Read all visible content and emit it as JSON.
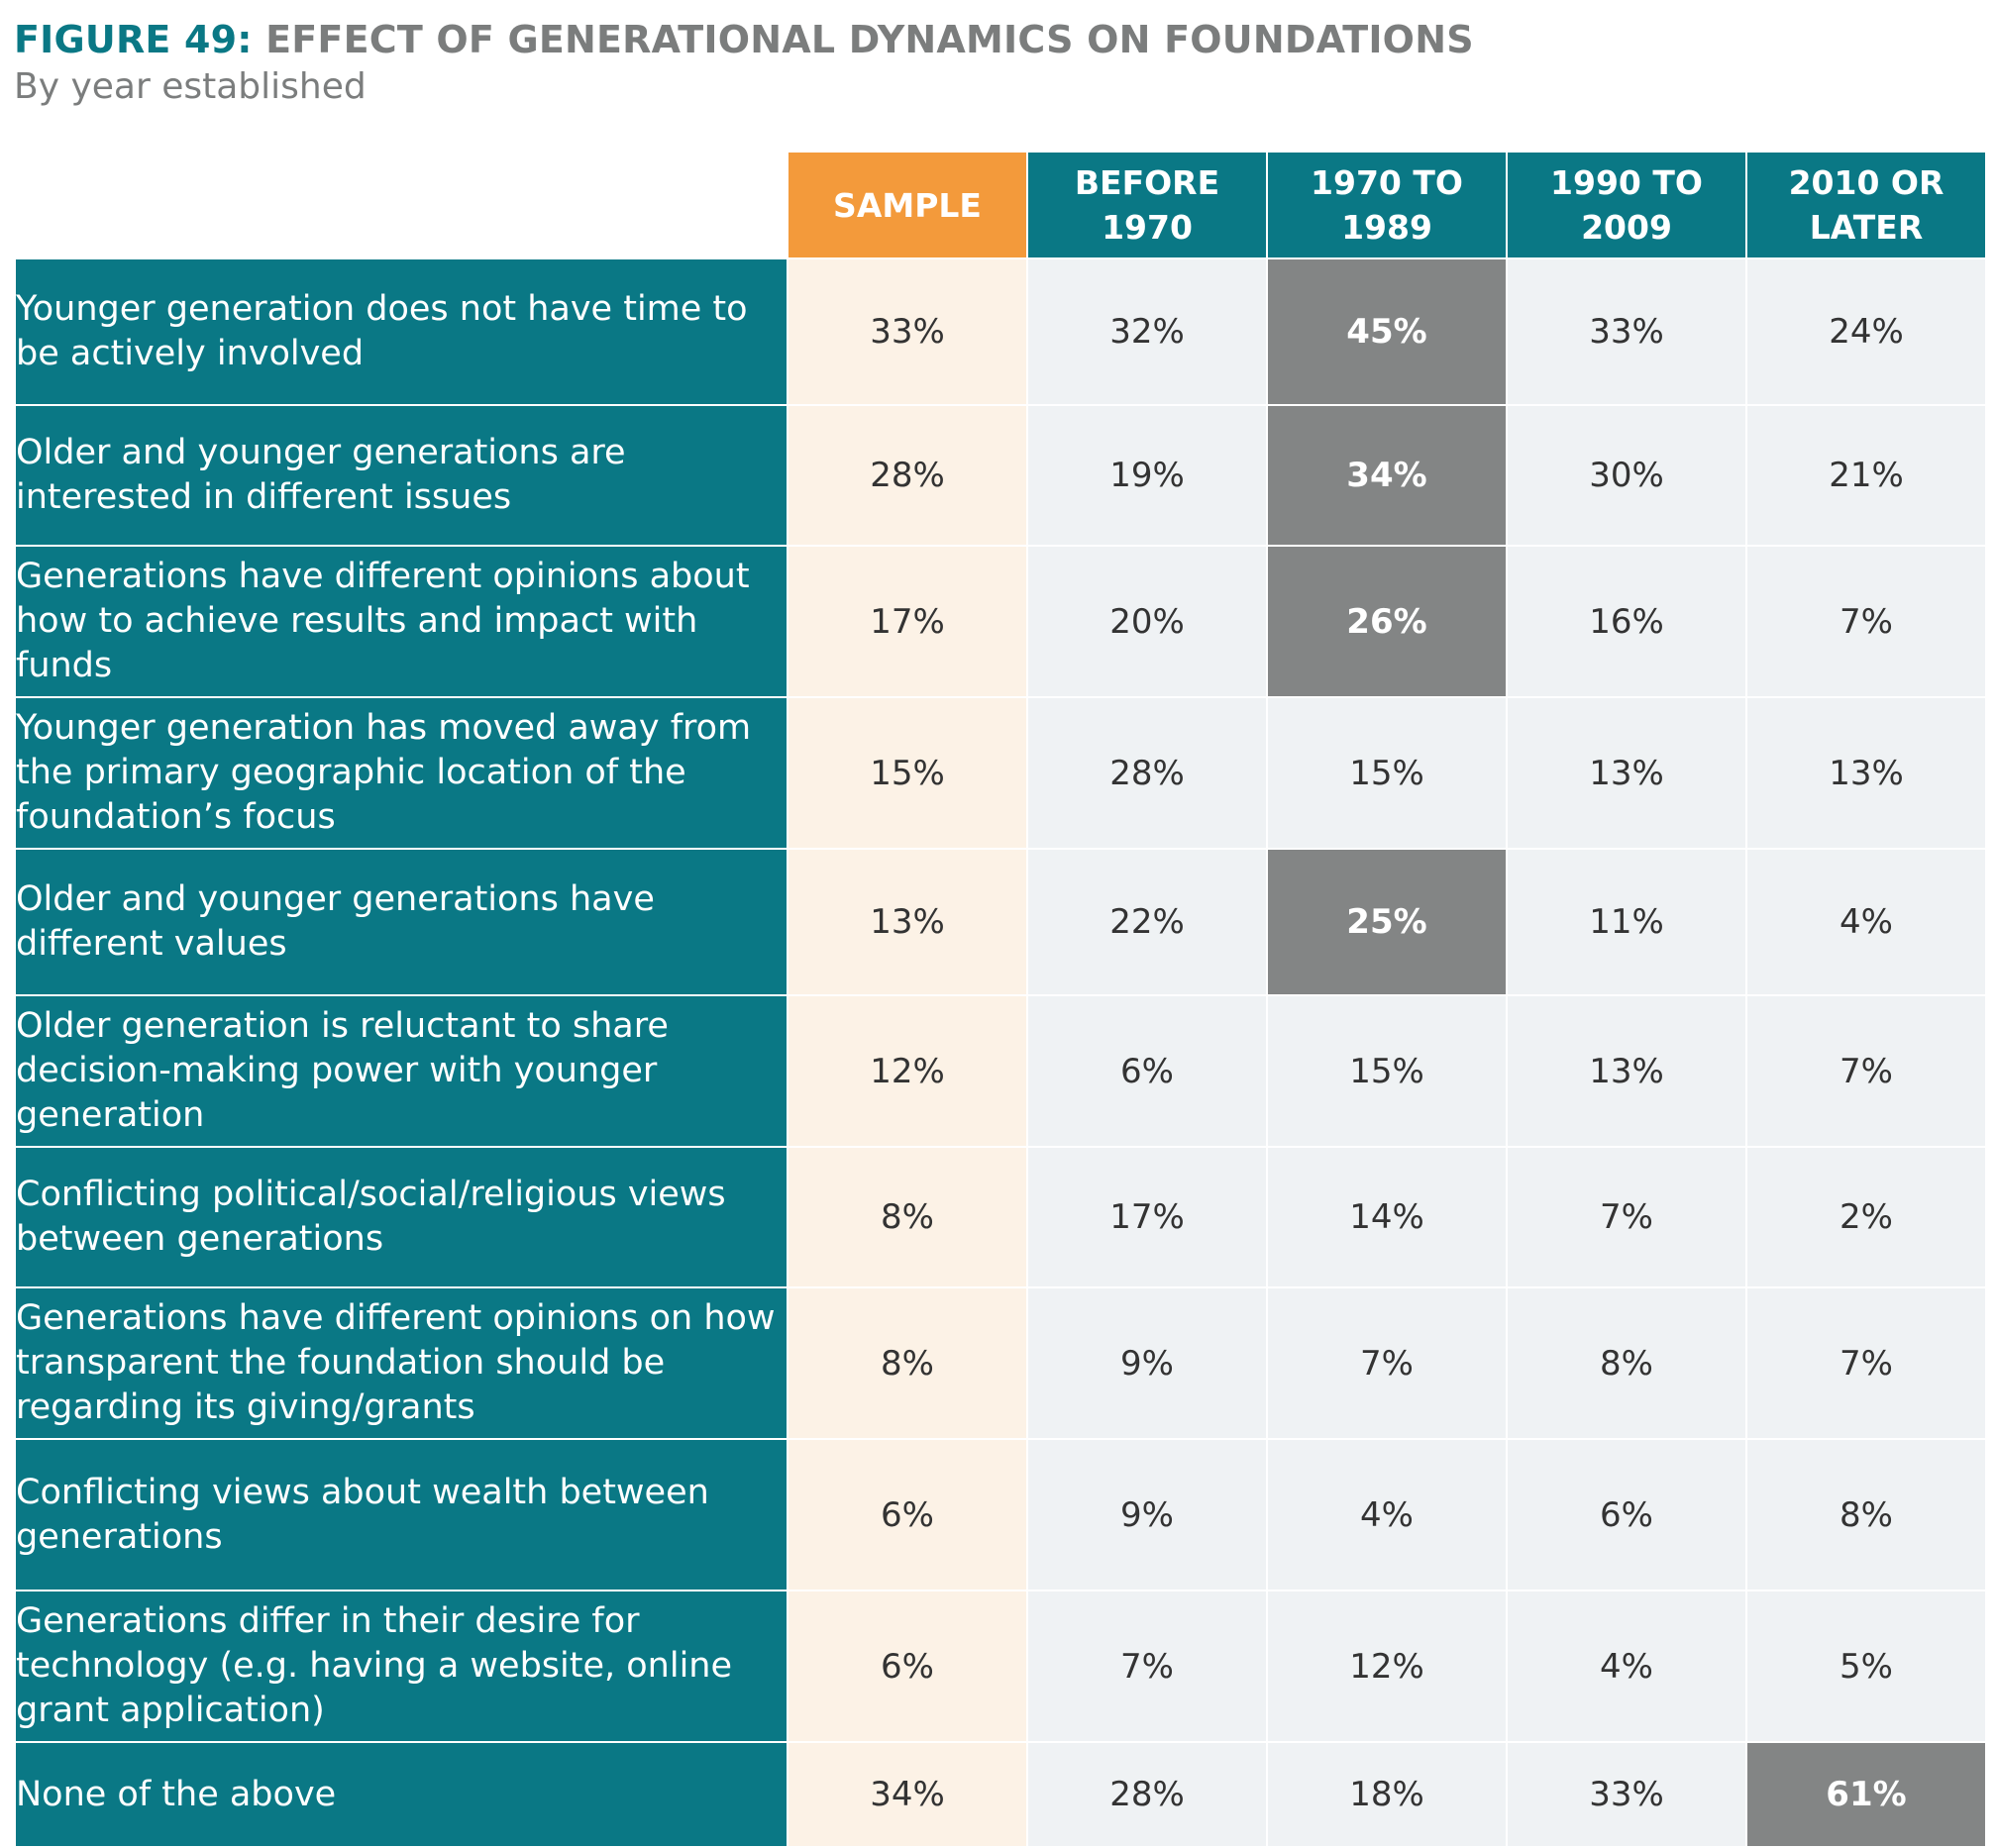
{
  "figure": {
    "label": "FIGURE 49:",
    "title": "EFFECT OF GENERATIONAL DYNAMICS ON FOUNDATIONS",
    "subtitle": "By year established"
  },
  "colors": {
    "header_teal": "#0a7885",
    "sample_orange": "#f39a3b",
    "sample_cell": "#fcf2e6",
    "cell": "#eff2f4",
    "highlight": "#838585",
    "title_gray": "#7b7d7d"
  },
  "chart_data": {
    "type": "table",
    "title": "FIGURE 49: EFFECT OF GENERATIONAL DYNAMICS ON FOUNDATIONS",
    "subtitle": "By year established",
    "columns": [
      "SAMPLE",
      "BEFORE 1970",
      "1970 TO 1989",
      "1990 TO 2009",
      "2010 OR LATER"
    ],
    "rows": [
      {
        "label": "Younger generation does not have time to be actively involved",
        "values": [
          "33%",
          "32%",
          "45%",
          "33%",
          "24%"
        ],
        "highlight": [
          false,
          false,
          true,
          false,
          false
        ]
      },
      {
        "label": "Older and younger generations are interested in different issues",
        "values": [
          "28%",
          "19%",
          "34%",
          "30%",
          "21%"
        ],
        "highlight": [
          false,
          false,
          true,
          false,
          false
        ]
      },
      {
        "label": "Generations have different opinions about how to achieve results and impact with funds",
        "values": [
          "17%",
          "20%",
          "26%",
          "16%",
          "7%"
        ],
        "highlight": [
          false,
          false,
          true,
          false,
          false
        ]
      },
      {
        "label": "Younger generation has moved away from the primary geographic location of the foundation’s focus",
        "values": [
          "15%",
          "28%",
          "15%",
          "13%",
          "13%"
        ],
        "highlight": [
          false,
          false,
          false,
          false,
          false
        ]
      },
      {
        "label": "Older and younger generations have different values",
        "values": [
          "13%",
          "22%",
          "25%",
          "11%",
          "4%"
        ],
        "highlight": [
          false,
          false,
          true,
          false,
          false
        ]
      },
      {
        "label": "Older generation is reluctant to share decision-making power with younger generation",
        "values": [
          "12%",
          "6%",
          "15%",
          "13%",
          "7%"
        ],
        "highlight": [
          false,
          false,
          false,
          false,
          false
        ]
      },
      {
        "label": "Conflicting political/social/religious views between generations",
        "values": [
          "8%",
          "17%",
          "14%",
          "7%",
          "2%"
        ],
        "highlight": [
          false,
          false,
          false,
          false,
          false
        ]
      },
      {
        "label": "Generations have different opinions on how transparent the foundation should be regarding its giving/grants",
        "values": [
          "8%",
          "9%",
          "7%",
          "8%",
          "7%"
        ],
        "highlight": [
          false,
          false,
          false,
          false,
          false
        ]
      },
      {
        "label": "Conflicting views about wealth between generations",
        "values": [
          "6%",
          "9%",
          "4%",
          "6%",
          "8%"
        ],
        "highlight": [
          false,
          false,
          false,
          false,
          false
        ]
      },
      {
        "label": "Generations differ in their desire for technology (e.g. having a website, online grant application)",
        "values": [
          "6%",
          "7%",
          "12%",
          "4%",
          "5%"
        ],
        "highlight": [
          false,
          false,
          false,
          false,
          false
        ]
      },
      {
        "label": "None of the above",
        "values": [
          "34%",
          "28%",
          "18%",
          "33%",
          "61%"
        ],
        "highlight": [
          false,
          false,
          false,
          false,
          true
        ]
      }
    ]
  }
}
